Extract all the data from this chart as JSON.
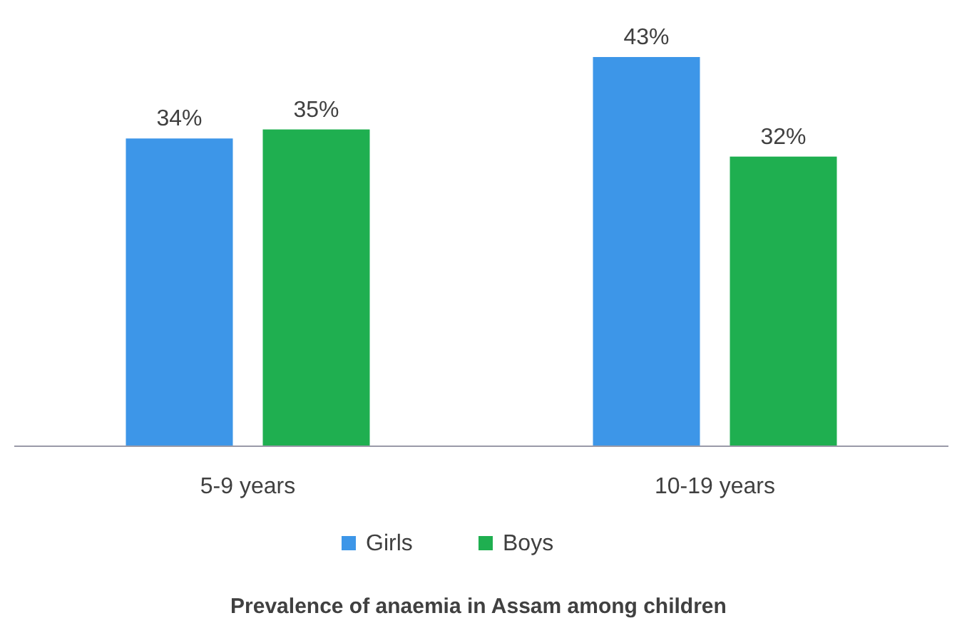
{
  "chart_data": {
    "type": "bar",
    "title": "Prevalence of anaemia in Assam among children",
    "categories": [
      "5-9 years",
      "10-19 years"
    ],
    "series": [
      {
        "name": "Girls",
        "color": "#3d96e8",
        "values": [
          34,
          43
        ],
        "value_labels": [
          "34%",
          "43%"
        ]
      },
      {
        "name": "Boys",
        "color": "#1faf50",
        "values": [
          35,
          32
        ],
        "value_labels": [
          "35%",
          "32%"
        ]
      }
    ],
    "legend": "bottom"
  }
}
